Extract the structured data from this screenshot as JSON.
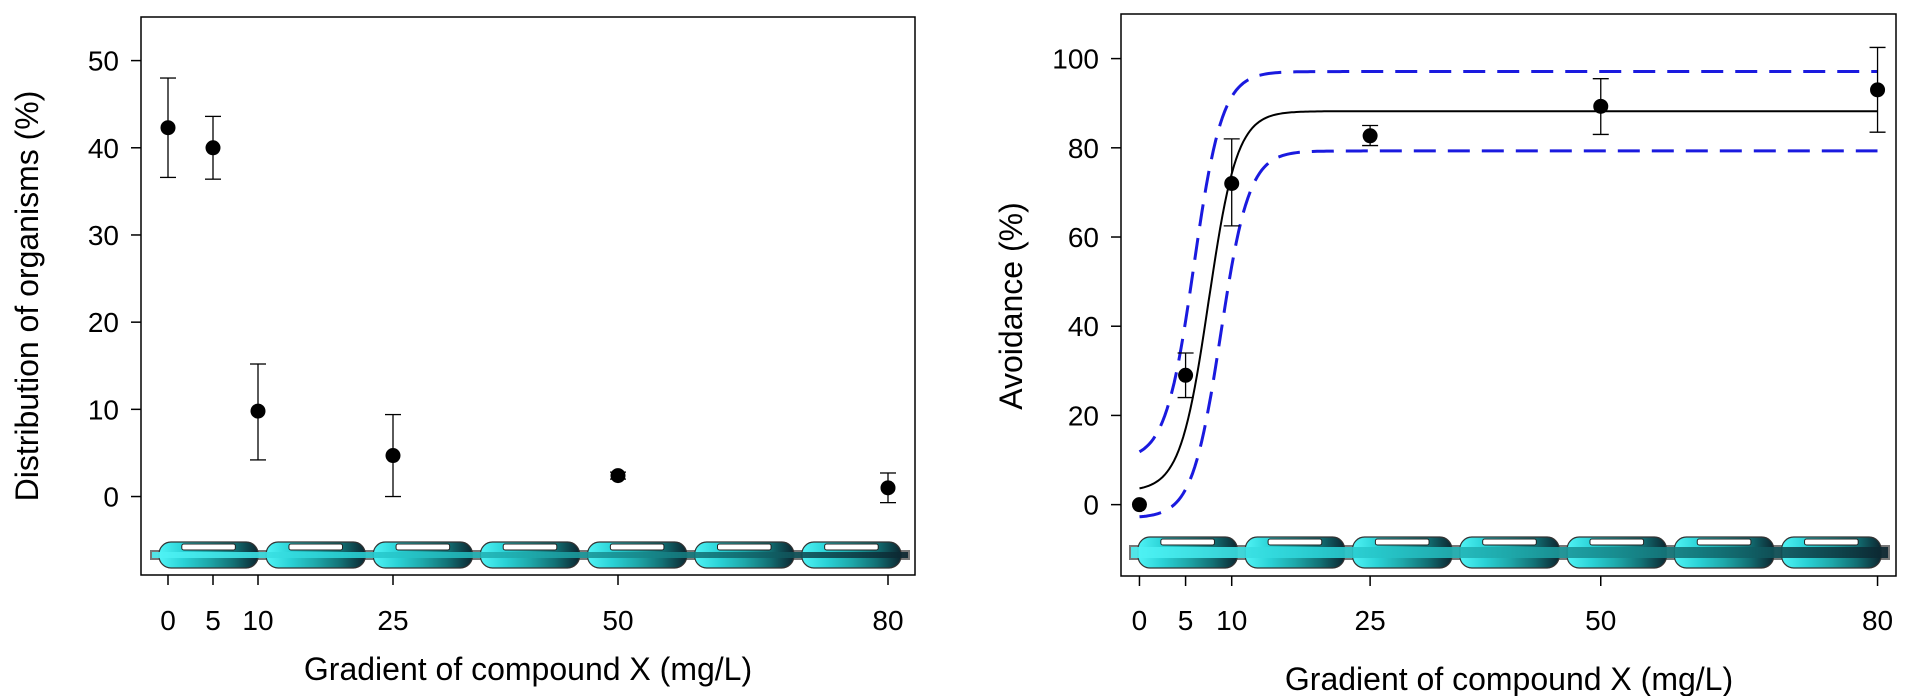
{
  "chart_data": [
    {
      "type": "scatter",
      "xlabel": "Gradient of compound X (mg/L)",
      "ylabel": "Distribution of organisms (%)",
      "xlim": [
        -3,
        83
      ],
      "ylim": [
        -9,
        55
      ],
      "xticks": [
        0,
        5,
        10,
        25,
        50,
        80
      ],
      "yticks": [
        0,
        10,
        20,
        30,
        40,
        50
      ],
      "grid": false,
      "series": [
        {
          "points": [
            {
              "x": 0,
              "y": 42.3,
              "err_low": 36.6,
              "err_high": 48.0
            },
            {
              "x": 5,
              "y": 40.0,
              "err_low": 36.4,
              "err_high": 43.6
            },
            {
              "x": 10,
              "y": 9.8,
              "err_low": 4.2,
              "err_high": 15.2
            },
            {
              "x": 25,
              "y": 4.7,
              "err_low": 0.0,
              "err_high": 9.4
            },
            {
              "x": 50,
              "y": 2.4,
              "err_low": 2.0,
              "err_high": 2.8
            },
            {
              "x": 80,
              "y": 1.0,
              "err_low": -0.7,
              "err_high": 2.7
            }
          ]
        }
      ],
      "colors": {
        "points": "#000000",
        "gradient_start": "#4ff3f5",
        "gradient_end": "#0c2630"
      }
    },
    {
      "type": "scatter",
      "xlabel": "Gradient of compound X (mg/L)",
      "ylabel": "Avoidance (%)",
      "xlim": [
        -2,
        82
      ],
      "ylim": [
        -16,
        110
      ],
      "xticks": [
        0,
        5,
        10,
        25,
        50,
        80
      ],
      "yticks": [
        0,
        20,
        40,
        60,
        80,
        100
      ],
      "grid": false,
      "series": [
        {
          "points": [
            {
              "x": 0,
              "y": 0,
              "err_low": 0,
              "err_high": 0
            },
            {
              "x": 5,
              "y": 29,
              "err_low": 24,
              "err_high": 34
            },
            {
              "x": 10,
              "y": 72,
              "err_low": 62.5,
              "err_high": 82
            },
            {
              "x": 25,
              "y": 82.7,
              "err_low": 80.5,
              "err_high": 85
            },
            {
              "x": 50,
              "y": 89.3,
              "err_low": 83,
              "err_high": 95.5
            },
            {
              "x": 80,
              "y": 93,
              "err_low": 83.5,
              "err_high": 102.5
            }
          ]
        }
      ],
      "fit": {
        "curve": "logistic",
        "upper": 88.2,
        "midpoint": 7.5,
        "slope": 0.65,
        "confidence_band": {
          "upper_asymptote": 97.1,
          "lower_asymptote": 79.3,
          "upper_offset_min": 10,
          "lower_offset_min": -3
        }
      },
      "colors": {
        "points": "#000000",
        "fit": "#000000",
        "band": "#1a1adf",
        "gradient_start": "#4ff3f5",
        "gradient_end": "#0c2630"
      }
    }
  ]
}
